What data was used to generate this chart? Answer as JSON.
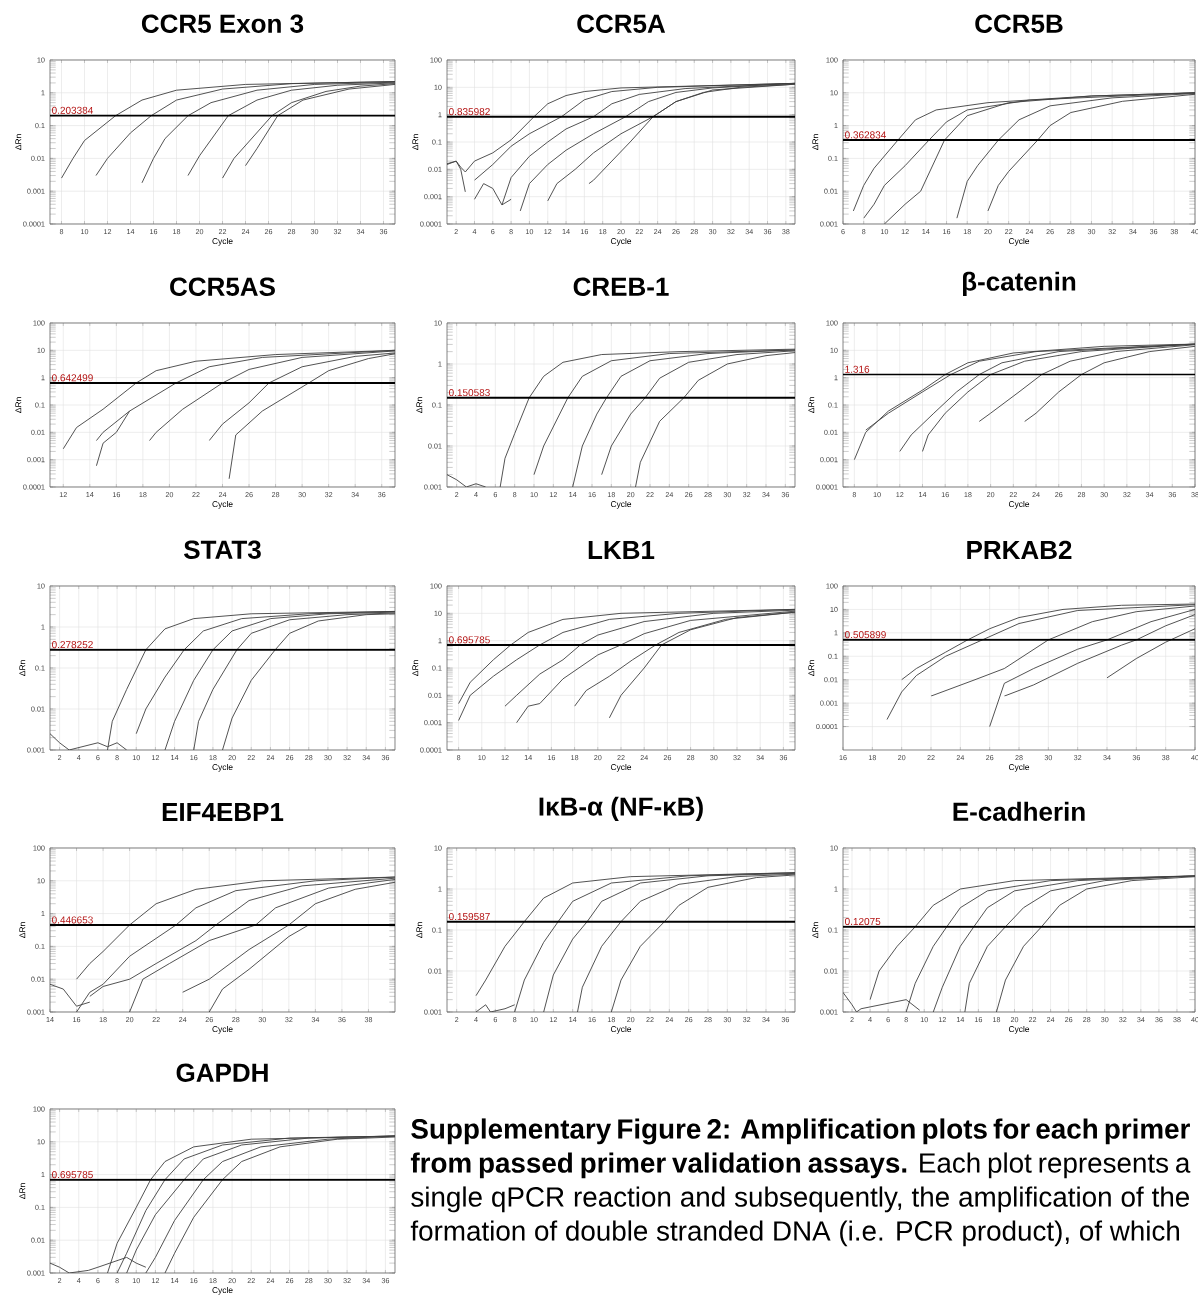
{
  "chart_data": [
    {
      "type": "line",
      "title": "CCR5 Exon 3",
      "xlabel": "Cycle",
      "ylabel": "ΔRn",
      "log": "y",
      "grid": true,
      "xlim": [
        7,
        37
      ],
      "ylim": [
        0.0001,
        10
      ],
      "xticks": [
        8,
        10,
        12,
        14,
        16,
        18,
        20,
        22,
        24,
        26,
        28,
        30,
        32,
        34,
        36
      ],
      "yticks": [
        0.0001,
        0.001,
        0.01,
        0.1,
        1,
        10
      ],
      "ref_lines": [
        {
          "axis": "y",
          "value": 0.203384,
          "label": "0.203384"
        }
      ],
      "series": [
        {
          "color": "#404040",
          "x": [
            8,
            9,
            10,
            12.7,
            15,
            18,
            24,
            37
          ],
          "values": [
            0.0025,
            0.01,
            0.035,
            0.2,
            0.6,
            1.2,
            1.8,
            2.2
          ]
        },
        {
          "color": "#404040",
          "x": [
            11,
            12,
            14,
            15.8,
            18,
            22,
            28,
            37
          ],
          "values": [
            0.003,
            0.01,
            0.06,
            0.2,
            0.6,
            1.3,
            1.9,
            2.2
          ]
        },
        {
          "color": "#404040",
          "x": [
            15,
            16,
            17,
            19,
            21,
            25,
            30,
            37
          ],
          "values": [
            0.0018,
            0.01,
            0.04,
            0.2,
            0.5,
            1.2,
            1.8,
            2.1
          ]
        },
        {
          "color": "#404040",
          "x": [
            19,
            20,
            22.5,
            25,
            28,
            32,
            37
          ],
          "values": [
            0.003,
            0.012,
            0.2,
            0.6,
            1.2,
            1.7,
            2.0
          ]
        },
        {
          "color": "#404040",
          "x": [
            22,
            23,
            26.3,
            28,
            31,
            34,
            37
          ],
          "values": [
            0.0025,
            0.01,
            0.2,
            0.5,
            1.1,
            1.6,
            1.9
          ]
        },
        {
          "color": "#404040",
          "x": [
            24,
            25,
            26.8,
            29,
            33,
            37
          ],
          "values": [
            0.006,
            0.02,
            0.2,
            0.6,
            1.3,
            1.8
          ]
        }
      ]
    },
    {
      "type": "line",
      "title": "CCR5A",
      "xlabel": "Cycle",
      "ylabel": "ΔRn",
      "log": "y",
      "grid": true,
      "xlim": [
        1,
        39
      ],
      "ylim": [
        0.0001,
        100
      ],
      "xticks": [
        2,
        4,
        6,
        8,
        10,
        12,
        14,
        16,
        18,
        20,
        22,
        24,
        26,
        28,
        30,
        32,
        34,
        36,
        38
      ],
      "yticks": [
        0.0001,
        0.001,
        0.01,
        0.1,
        1,
        10,
        100
      ],
      "ref_lines": [
        {
          "axis": "y",
          "value": 0.835982,
          "label": "0.835982"
        }
      ],
      "series": [
        {
          "color": "#404040",
          "x": [
            1,
            2,
            2.5,
            3,
            4,
            6,
            8,
            10.5,
            12,
            14,
            16,
            20,
            39
          ],
          "values": [
            0.015,
            0.02,
            0.012,
            0.008,
            0.02,
            0.04,
            0.12,
            0.84,
            2.5,
            5,
            7,
            9.5,
            14
          ]
        },
        {
          "color": "#404040",
          "x": [
            4,
            6,
            8,
            10,
            13.5,
            16,
            19,
            24,
            39
          ],
          "values": [
            0.004,
            0.015,
            0.07,
            0.2,
            0.84,
            3.5,
            7,
            10,
            14
          ]
        },
        {
          "color": "#404040",
          "x": [
            7,
            8,
            10,
            12,
            14,
            17,
            19,
            22,
            27,
            39
          ],
          "values": [
            0.0005,
            0.005,
            0.03,
            0.1,
            0.3,
            0.84,
            2.5,
            5.5,
            9,
            14
          ]
        },
        {
          "color": "#404040",
          "x": [
            9,
            10,
            12,
            14,
            17,
            20.5,
            23,
            26,
            30,
            39
          ],
          "values": [
            0.0003,
            0.003,
            0.015,
            0.05,
            0.2,
            0.84,
            3,
            6.5,
            9.5,
            14
          ]
        },
        {
          "color": "#404040",
          "x": [
            12,
            13,
            15,
            17,
            20,
            23.5,
            26,
            29,
            33,
            39
          ],
          "values": [
            0.0007,
            0.003,
            0.01,
            0.04,
            0.2,
            0.84,
            3,
            6.5,
            10,
            13
          ]
        },
        {
          "color": "#404040",
          "x": [
            16.5,
            17,
            19,
            21,
            23.5,
            26,
            30,
            39
          ],
          "values": [
            0.003,
            0.004,
            0.02,
            0.1,
            0.84,
            3,
            8,
            13
          ]
        },
        {
          "color": "#404040",
          "x": [
            1,
            2,
            2.5,
            3
          ],
          "values": [
            0.016,
            0.02,
            0.01,
            0.0015
          ]
        },
        {
          "color": "#404040",
          "x": [
            4,
            5,
            6,
            7,
            8
          ],
          "values": [
            0.0008,
            0.003,
            0.002,
            0.0005,
            0.0008
          ]
        }
      ]
    },
    {
      "type": "line",
      "title": "CCR5B",
      "xlabel": "Cycle",
      "ylabel": "ΔRn",
      "log": "y",
      "grid": true,
      "xlim": [
        6,
        40
      ],
      "ylim": [
        0.001,
        100
      ],
      "xticks": [
        6,
        8,
        10,
        12,
        14,
        16,
        18,
        20,
        22,
        24,
        26,
        28,
        30,
        32,
        34,
        36,
        38,
        40
      ],
      "yticks": [
        0.001,
        0.01,
        0.1,
        1,
        10,
        100
      ],
      "ref_lines": [
        {
          "axis": "y",
          "value": 0.362834,
          "label": "0.362834"
        }
      ],
      "series": [
        {
          "color": "#404040",
          "x": [
            7,
            8,
            9,
            11.3,
            13,
            15,
            20,
            30,
            40
          ],
          "values": [
            0.0025,
            0.015,
            0.05,
            0.36,
            1.5,
            3,
            5,
            8,
            10
          ]
        },
        {
          "color": "#404040",
          "x": [
            8,
            9,
            10,
            12,
            14.3,
            16,
            18,
            24,
            40
          ],
          "values": [
            0.0015,
            0.004,
            0.015,
            0.06,
            0.36,
            1.3,
            3,
            6,
            10
          ]
        },
        {
          "color": "#404040",
          "x": [
            10,
            12,
            13.5,
            15.8,
            18,
            22,
            30,
            40
          ],
          "values": [
            0.001,
            0.004,
            0.01,
            0.36,
            2,
            5,
            8,
            10
          ]
        },
        {
          "color": "#404040",
          "x": [
            17,
            18,
            19,
            21,
            23,
            26,
            32,
            40
          ],
          "values": [
            0.0015,
            0.02,
            0.06,
            0.36,
            1.5,
            4,
            7,
            9.5
          ]
        },
        {
          "color": "#404040",
          "x": [
            20,
            21,
            22,
            24.8,
            26,
            28,
            33,
            40
          ],
          "values": [
            0.0025,
            0.015,
            0.04,
            0.36,
            1,
            2.5,
            5.5,
            9
          ]
        }
      ]
    },
    {
      "type": "line",
      "title": "CCR5AS",
      "xlabel": "Cycle",
      "ylabel": "ΔRn",
      "log": "y",
      "grid": true,
      "xlim": [
        11,
        37
      ],
      "ylim": [
        0.0001,
        100
      ],
      "xticks": [
        12,
        14,
        16,
        18,
        20,
        22,
        24,
        26,
        28,
        30,
        32,
        34,
        36
      ],
      "yticks": [
        0.0001,
        0.001,
        0.01,
        0.1,
        1,
        10,
        100
      ],
      "ref_lines": [
        {
          "axis": "y",
          "value": 0.642499,
          "label": "0.642499"
        }
      ],
      "series": [
        {
          "color": "#404040",
          "x": [
            12,
            13,
            15,
            17.5,
            19,
            22,
            28,
            37
          ],
          "values": [
            0.0025,
            0.015,
            0.07,
            0.64,
            1.8,
            4,
            7,
            10
          ]
        },
        {
          "color": "#404040",
          "x": [
            14.5,
            15,
            17,
            20.5,
            23,
            27,
            37
          ],
          "values": [
            0.005,
            0.01,
            0.06,
            0.64,
            2.5,
            5.5,
            10
          ]
        },
        {
          "color": "#404040",
          "x": [
            14.5,
            15,
            16,
            17
          ],
          "values": [
            0.0006,
            0.004,
            0.01,
            0.06
          ]
        },
        {
          "color": "#404040",
          "x": [
            18.5,
            19,
            21,
            24,
            26,
            30,
            37
          ],
          "values": [
            0.005,
            0.01,
            0.07,
            0.64,
            2,
            5.5,
            9.5
          ]
        },
        {
          "color": "#404040",
          "x": [
            23,
            24,
            26,
            27.5,
            30,
            34,
            37
          ],
          "values": [
            0.005,
            0.02,
            0.12,
            0.64,
            2.5,
            6,
            8
          ]
        },
        {
          "color": "#404040",
          "x": [
            24.5,
            25,
            27,
            30.5,
            32,
            35,
            37
          ],
          "values": [
            0.0002,
            0.008,
            0.06,
            0.64,
            1.8,
            5,
            7.5
          ]
        }
      ]
    },
    {
      "type": "line",
      "title": "CREB-1",
      "xlabel": "Cycle",
      "ylabel": "ΔRn",
      "log": "y",
      "grid": true,
      "xlim": [
        1,
        37
      ],
      "ylim": [
        0.001,
        10
      ],
      "xticks": [
        2,
        4,
        6,
        8,
        10,
        12,
        14,
        16,
        18,
        20,
        22,
        24,
        26,
        28,
        30,
        32,
        34,
        36
      ],
      "yticks": [
        0.001,
        0.01,
        0.1,
        1,
        10
      ],
      "ref_lines": [
        {
          "axis": "y",
          "value": 0.150583,
          "label": "0.150583"
        }
      ],
      "series": [
        {
          "color": "#404040",
          "x": [
            6.5,
            7,
            8,
            9.5,
            11,
            13,
            17,
            25,
            37
          ],
          "values": [
            0.001,
            0.005,
            0.02,
            0.15,
            0.5,
            1.1,
            1.7,
            2,
            2.3
          ]
        },
        {
          "color": "#404040",
          "x": [
            10,
            11,
            13.5,
            15,
            18,
            24,
            37
          ],
          "values": [
            0.002,
            0.01,
            0.15,
            0.5,
            1.2,
            1.8,
            2.2
          ]
        },
        {
          "color": "#404040",
          "x": [
            14,
            15,
            16.5,
            17.5,
            19,
            22,
            28,
            37
          ],
          "values": [
            0.001,
            0.01,
            0.06,
            0.15,
            0.5,
            1.2,
            1.8,
            2.2
          ]
        },
        {
          "color": "#404040",
          "x": [
            17,
            18,
            20,
            21.5,
            23,
            26,
            31,
            37
          ],
          "values": [
            0.002,
            0.01,
            0.06,
            0.15,
            0.45,
            1.1,
            1.7,
            2.1
          ]
        },
        {
          "color": "#404040",
          "x": [
            20.5,
            21,
            23,
            25.5,
            27,
            30,
            34,
            37
          ],
          "values": [
            0.001,
            0.004,
            0.04,
            0.15,
            0.4,
            1,
            1.6,
            1.9
          ]
        },
        {
          "color": "#404040",
          "x": [
            1,
            2,
            3,
            4,
            5
          ],
          "values": [
            0.002,
            0.0015,
            0.001,
            0.0012,
            0.001
          ]
        }
      ]
    },
    {
      "type": "line",
      "title": "β-catenin",
      "xlabel": "Cycle",
      "ylabel": "ΔRn",
      "log": "y",
      "grid": true,
      "xlim": [
        7,
        38
      ],
      "ylim": [
        0.0001,
        100
      ],
      "xticks": [
        8,
        10,
        12,
        14,
        16,
        18,
        20,
        22,
        24,
        26,
        28,
        30,
        32,
        34,
        36,
        38
      ],
      "yticks": [
        0.0001,
        0.001,
        0.01,
        0.1,
        1,
        10,
        100
      ],
      "ref_lines": [
        {
          "axis": "y",
          "value": 1.316,
          "label": "1.316"
        }
      ],
      "series": [
        {
          "color": "#404040",
          "x": [
            8,
            9,
            11,
            14,
            16,
            18,
            22,
            30,
            38
          ],
          "values": [
            0.001,
            0.01,
            0.06,
            0.35,
            1.3,
            3.5,
            8,
            14,
            17
          ]
        },
        {
          "color": "#404040",
          "x": [
            9,
            11,
            14,
            16.5,
            19,
            24,
            38
          ],
          "values": [
            0.012,
            0.05,
            0.3,
            1.3,
            4,
            9,
            17
          ]
        },
        {
          "color": "#404040",
          "x": [
            12,
            13,
            15,
            17,
            19,
            21,
            26,
            38
          ],
          "values": [
            0.002,
            0.008,
            0.05,
            0.3,
            1.3,
            3.5,
            9,
            17
          ]
        },
        {
          "color": "#404040",
          "x": [
            14,
            14.5,
            16,
            18,
            20,
            23,
            28,
            38
          ],
          "values": [
            0.002,
            0.008,
            0.05,
            0.3,
            1.3,
            4,
            9,
            17
          ]
        },
        {
          "color": "#404040",
          "x": [
            19,
            20,
            22.5,
            24.5,
            27,
            31,
            38
          ],
          "values": [
            0.025,
            0.05,
            0.3,
            1.3,
            4,
            9,
            16
          ]
        },
        {
          "color": "#404040",
          "x": [
            23,
            24,
            26,
            28,
            30,
            34,
            38
          ],
          "values": [
            0.025,
            0.05,
            0.3,
            1.3,
            3.5,
            9,
            14
          ]
        }
      ]
    },
    {
      "type": "line",
      "title": "STAT3",
      "xlabel": "Cycle",
      "ylabel": "ΔRn",
      "log": "y",
      "grid": true,
      "xlim": [
        1,
        37
      ],
      "ylim": [
        0.001,
        10
      ],
      "xticks": [
        2,
        4,
        6,
        8,
        10,
        12,
        14,
        16,
        18,
        20,
        22,
        24,
        26,
        28,
        30,
        32,
        34,
        36
      ],
      "yticks": [
        0.001,
        0.01,
        0.1,
        1,
        10
      ],
      "ref_lines": [
        {
          "axis": "y",
          "value": 0.278252,
          "label": "0.278252"
        }
      ],
      "series": [
        {
          "color": "#404040",
          "x": [
            7,
            7.5,
            9,
            11,
            13,
            16,
            22,
            37
          ],
          "values": [
            0.001,
            0.005,
            0.03,
            0.278,
            0.9,
            1.6,
            2.1,
            2.4
          ]
        },
        {
          "color": "#404040",
          "x": [
            10,
            11,
            13,
            15,
            17,
            21,
            28,
            37
          ],
          "values": [
            0.0025,
            0.01,
            0.06,
            0.278,
            0.8,
            1.6,
            2.1,
            2.4
          ]
        },
        {
          "color": "#404040",
          "x": [
            13,
            14,
            16,
            18,
            20,
            24,
            30,
            37
          ],
          "values": [
            0.001,
            0.005,
            0.05,
            0.278,
            0.8,
            1.6,
            2.1,
            2.3
          ]
        },
        {
          "color": "#404040",
          "x": [
            16,
            16.5,
            18,
            20.5,
            22,
            26,
            32,
            37
          ],
          "values": [
            0.001,
            0.005,
            0.03,
            0.278,
            0.7,
            1.5,
            2,
            2.2
          ]
        },
        {
          "color": "#404040",
          "x": [
            19,
            20,
            22,
            24.5,
            26,
            29,
            34,
            37
          ],
          "values": [
            0.001,
            0.006,
            0.05,
            0.278,
            0.7,
            1.4,
            2,
            2.1
          ]
        },
        {
          "color": "#404040",
          "x": [
            1,
            2,
            3,
            6,
            7,
            8,
            9
          ],
          "values": [
            0.0025,
            0.0015,
            0.001,
            0.0015,
            0.0012,
            0.0015,
            0.001
          ]
        }
      ]
    },
    {
      "type": "line",
      "title": "LKB1",
      "xlabel": "Cycle",
      "ylabel": "ΔRn",
      "log": "y",
      "grid": true,
      "xlim": [
        7,
        37
      ],
      "ylim": [
        0.0001,
        100
      ],
      "xticks": [
        8,
        10,
        12,
        14,
        16,
        18,
        20,
        22,
        24,
        26,
        28,
        30,
        32,
        34,
        36
      ],
      "yticks": [
        0.0001,
        0.001,
        0.01,
        0.1,
        1,
        10,
        100
      ],
      "ref_lines": [
        {
          "axis": "y",
          "value": 0.695785,
          "label": "0.695785"
        }
      ],
      "series": [
        {
          "color": "#404040",
          "x": [
            8,
            9,
            11,
            12.5,
            14,
            17,
            22,
            37
          ],
          "values": [
            0.005,
            0.03,
            0.2,
            0.7,
            2,
            6,
            10,
            14
          ]
        },
        {
          "color": "#404040",
          "x": [
            8,
            9,
            11,
            13,
            15,
            17,
            21,
            27,
            37
          ],
          "values": [
            0.0012,
            0.01,
            0.05,
            0.2,
            0.7,
            2,
            6,
            10,
            14
          ]
        },
        {
          "color": "#404040",
          "x": [
            12,
            13,
            15,
            17,
            18.5,
            20,
            24,
            30,
            37
          ],
          "values": [
            0.004,
            0.01,
            0.06,
            0.2,
            0.7,
            1.6,
            5,
            10,
            13
          ]
        },
        {
          "color": "#404040",
          "x": [
            13,
            14,
            15,
            17,
            20,
            22,
            24,
            28,
            37
          ],
          "values": [
            0.001,
            0.004,
            0.005,
            0.04,
            0.3,
            0.7,
            1.8,
            5.5,
            12
          ]
        },
        {
          "color": "#404040",
          "x": [
            18,
            19,
            21,
            23,
            25,
            27,
            31,
            37
          ],
          "values": [
            0.004,
            0.015,
            0.05,
            0.2,
            0.7,
            2,
            6,
            11
          ]
        },
        {
          "color": "#404040",
          "x": [
            21,
            22,
            24,
            25.5,
            28,
            32,
            37
          ],
          "values": [
            0.0015,
            0.01,
            0.1,
            0.7,
            2.5,
            7,
            11
          ]
        }
      ]
    },
    {
      "type": "line",
      "title": "PRKAB2",
      "xlabel": "Cycle",
      "ylabel": "ΔRn",
      "log": "y",
      "grid": true,
      "xlim": [
        16,
        40
      ],
      "ylim": [
        1e-05,
        100
      ],
      "xticks": [
        16,
        18,
        20,
        22,
        24,
        26,
        28,
        30,
        32,
        34,
        36,
        38,
        40
      ],
      "yticks": [
        0.0001,
        0.001,
        0.01,
        0.1,
        1,
        10,
        100
      ],
      "ref_lines": [
        {
          "axis": "y",
          "value": 0.505899,
          "label": "0.505899"
        }
      ],
      "series": [
        {
          "color": "#404040",
          "x": [
            20,
            21,
            23,
            24.5,
            26,
            28,
            31,
            35,
            40
          ],
          "values": [
            0.01,
            0.03,
            0.15,
            0.5,
            1.5,
            4.5,
            10,
            15,
            17
          ]
        },
        {
          "color": "#404040",
          "x": [
            19,
            20,
            21,
            23,
            25.5,
            28,
            32,
            40
          ],
          "values": [
            0.0002,
            0.003,
            0.015,
            0.1,
            0.5,
            2.5,
            9,
            16
          ]
        },
        {
          "color": "#404040",
          "x": [
            22,
            25,
            27,
            30,
            33,
            36,
            40
          ],
          "values": [
            0.002,
            0.01,
            0.03,
            0.5,
            3,
            8,
            14
          ]
        },
        {
          "color": "#404040",
          "x": [
            26,
            27,
            29,
            32,
            34,
            37,
            40
          ],
          "values": [
            0.0001,
            0.007,
            0.03,
            0.2,
            0.5,
            3,
            10
          ]
        },
        {
          "color": "#404040",
          "x": [
            27,
            29,
            32,
            35,
            36,
            38,
            40
          ],
          "values": [
            0.002,
            0.006,
            0.05,
            0.3,
            0.5,
            2,
            6
          ]
        },
        {
          "color": "#404040",
          "x": [
            34,
            36,
            38,
            40
          ],
          "values": [
            0.012,
            0.08,
            0.4,
            1.5
          ]
        }
      ]
    },
    {
      "type": "line",
      "title": "EIF4EBP1",
      "xlabel": "Cycle",
      "ylabel": "ΔRn",
      "log": "y",
      "grid": true,
      "xlim": [
        14,
        40
      ],
      "ylim": [
        0.001,
        100
      ],
      "xticks": [
        14,
        16,
        18,
        20,
        22,
        24,
        26,
        28,
        30,
        32,
        34,
        36,
        38
      ],
      "yticks": [
        0.001,
        0.01,
        0.1,
        1,
        10,
        100
      ],
      "ref_lines": [
        {
          "axis": "y",
          "value": 0.446653,
          "label": "0.446653"
        }
      ],
      "series": [
        {
          "color": "#404040",
          "x": [
            16,
            17,
            18,
            20,
            22,
            25,
            30,
            40
          ],
          "values": [
            0.01,
            0.03,
            0.07,
            0.45,
            2,
            5.5,
            10,
            13
          ]
        },
        {
          "color": "#404040",
          "x": [
            16,
            17,
            18,
            20,
            23.5,
            25,
            28,
            34,
            40
          ],
          "values": [
            0.001,
            0.004,
            0.007,
            0.05,
            0.45,
            1.5,
            5,
            10,
            13
          ]
        },
        {
          "color": "#404040",
          "x": [
            17,
            18,
            20,
            22,
            25,
            26.5,
            29,
            33,
            40
          ],
          "values": [
            0.003,
            0.006,
            0.01,
            0.03,
            0.15,
            0.45,
            2.5,
            7,
            12
          ]
        },
        {
          "color": "#404040",
          "x": [
            20,
            21,
            23,
            26,
            29.5,
            31,
            35,
            40
          ],
          "values": [
            0.001,
            0.01,
            0.03,
            0.15,
            0.45,
            1.5,
            6,
            11
          ]
        },
        {
          "color": "#404040",
          "x": [
            24,
            26,
            29,
            32,
            34,
            37,
            40
          ],
          "values": [
            0.004,
            0.01,
            0.08,
            0.45,
            2,
            5.5,
            9
          ]
        },
        {
          "color": "#404040",
          "x": [
            26,
            27,
            29,
            32,
            33.5
          ],
          "values": [
            0.001,
            0.005,
            0.02,
            0.2,
            0.45
          ]
        },
        {
          "color": "#404040",
          "x": [
            14,
            15,
            16,
            17
          ],
          "values": [
            0.007,
            0.005,
            0.0015,
            0.002
          ]
        }
      ]
    },
    {
      "type": "line",
      "title": "IκB-α (NF-κB)",
      "xlabel": "Cycle",
      "ylabel": "ΔRn",
      "log": "y",
      "grid": true,
      "xlim": [
        1,
        37
      ],
      "ylim": [
        0.001,
        10
      ],
      "xticks": [
        2,
        4,
        6,
        8,
        10,
        12,
        14,
        16,
        18,
        20,
        22,
        24,
        26,
        28,
        30,
        32,
        34,
        36
      ],
      "yticks": [
        0.001,
        0.01,
        0.1,
        1,
        10
      ],
      "ref_lines": [
        {
          "axis": "y",
          "value": 0.159587,
          "label": "0.159587"
        }
      ],
      "series": [
        {
          "color": "#404040",
          "x": [
            4,
            5,
            7,
            9,
            11,
            14,
            20,
            37
          ],
          "values": [
            0.0025,
            0.006,
            0.04,
            0.16,
            0.6,
            1.4,
            2,
            2.5
          ]
        },
        {
          "color": "#404040",
          "x": [
            8,
            9,
            11,
            12.5,
            14,
            18,
            26,
            37
          ],
          "values": [
            0.001,
            0.006,
            0.05,
            0.16,
            0.5,
            1.4,
            2.1,
            2.5
          ]
        },
        {
          "color": "#404040",
          "x": [
            11,
            12,
            14,
            15.5,
            17,
            21,
            28,
            37
          ],
          "values": [
            0.001,
            0.008,
            0.06,
            0.16,
            0.5,
            1.4,
            2.1,
            2.4
          ]
        },
        {
          "color": "#404040",
          "x": [
            14.5,
            15,
            17,
            19,
            21,
            25,
            31,
            37
          ],
          "values": [
            0.001,
            0.004,
            0.04,
            0.16,
            0.5,
            1.3,
            2,
            2.3
          ]
        },
        {
          "color": "#404040",
          "x": [
            18,
            19,
            21,
            23.5,
            25,
            28,
            33,
            37
          ],
          "values": [
            0.001,
            0.006,
            0.04,
            0.16,
            0.4,
            1.1,
            1.9,
            2.2
          ]
        },
        {
          "color": "#404040",
          "x": [
            4,
            5,
            5.5,
            7,
            8
          ],
          "values": [
            0.001,
            0.0015,
            0.001,
            0.0012,
            0.0015
          ]
        }
      ]
    },
    {
      "type": "line",
      "title": "E-cadherin",
      "xlabel": "Cycle",
      "ylabel": "ΔRn",
      "log": "y",
      "grid": true,
      "xlim": [
        1,
        40
      ],
      "ylim": [
        0.001,
        10
      ],
      "xticks": [
        2,
        4,
        6,
        8,
        10,
        12,
        14,
        16,
        18,
        20,
        22,
        24,
        26,
        28,
        30,
        32,
        34,
        36,
        38,
        40
      ],
      "yticks": [
        0.001,
        0.01,
        0.1,
        1,
        10
      ],
      "ref_lines": [
        {
          "axis": "y",
          "value": 0.12075,
          "label": "0.12075"
        }
      ],
      "series": [
        {
          "color": "#404040",
          "x": [
            4,
            5,
            7,
            9,
            11,
            14,
            20,
            40
          ],
          "values": [
            0.002,
            0.01,
            0.04,
            0.12,
            0.4,
            1,
            1.6,
            2.1
          ]
        },
        {
          "color": "#404040",
          "x": [
            8,
            9,
            11,
            12.5,
            14,
            17,
            24,
            40
          ],
          "values": [
            0.001,
            0.005,
            0.04,
            0.12,
            0.35,
            0.9,
            1.6,
            2.1
          ]
        },
        {
          "color": "#404040",
          "x": [
            11,
            12,
            14,
            15.5,
            17,
            20,
            27,
            40
          ],
          "values": [
            0.001,
            0.004,
            0.04,
            0.12,
            0.35,
            0.9,
            1.6,
            2.1
          ]
        },
        {
          "color": "#404040",
          "x": [
            14.5,
            15,
            17,
            19,
            21,
            24,
            30,
            40
          ],
          "values": [
            0.001,
            0.005,
            0.04,
            0.12,
            0.35,
            0.9,
            1.6,
            2.1
          ]
        },
        {
          "color": "#404040",
          "x": [
            18,
            19,
            21,
            23,
            25,
            28,
            33,
            40
          ],
          "values": [
            0.001,
            0.006,
            0.04,
            0.12,
            0.4,
            1,
            1.6,
            2.0
          ]
        },
        {
          "color": "#404040",
          "x": [
            1,
            2,
            2.5,
            3,
            8,
            9.5
          ],
          "values": [
            0.003,
            0.0015,
            0.001,
            0.0012,
            0.002,
            0.0011
          ]
        }
      ]
    },
    {
      "type": "line",
      "title": "GAPDH",
      "xlabel": "Cycle",
      "ylabel": "ΔRn",
      "log": "y",
      "grid": true,
      "xlim": [
        1,
        37
      ],
      "ylim": [
        0.001,
        100
      ],
      "xticks": [
        2,
        4,
        6,
        8,
        10,
        12,
        14,
        16,
        18,
        20,
        22,
        24,
        26,
        28,
        30,
        32,
        34,
        36
      ],
      "yticks": [
        0.001,
        0.01,
        0.1,
        1,
        10,
        100
      ],
      "ref_lines": [
        {
          "axis": "y",
          "value": 0.695785,
          "label": "0.695785"
        }
      ],
      "series": [
        {
          "color": "#404040",
          "x": [
            7,
            8,
            10,
            11.5,
            13,
            16,
            22,
            37
          ],
          "values": [
            0.001,
            0.008,
            0.1,
            0.7,
            2.5,
            7,
            12,
            15
          ]
        },
        {
          "color": "#404040",
          "x": [
            8,
            9,
            11,
            13,
            15,
            19,
            26,
            37
          ],
          "values": [
            0.001,
            0.004,
            0.08,
            0.7,
            3,
            8,
            13,
            15
          ]
        },
        {
          "color": "#404040",
          "x": [
            9,
            10,
            12,
            15,
            17,
            21,
            28,
            37
          ],
          "values": [
            0.001,
            0.005,
            0.06,
            0.7,
            3,
            8,
            13,
            15
          ]
        },
        {
          "color": "#404040",
          "x": [
            11,
            12,
            14,
            17,
            19,
            23,
            30,
            37
          ],
          "values": [
            0.001,
            0.003,
            0.04,
            0.7,
            2.5,
            7,
            12,
            15
          ]
        },
        {
          "color": "#404040",
          "x": [
            13,
            14,
            16,
            19,
            21,
            25,
            31,
            37
          ],
          "values": [
            0.001,
            0.004,
            0.05,
            0.7,
            2.5,
            7,
            12,
            14
          ]
        },
        {
          "color": "#404040",
          "x": [
            1,
            2,
            3,
            5,
            6,
            9,
            10,
            11
          ],
          "values": [
            0.002,
            0.0015,
            0.001,
            0.0012,
            0.0015,
            0.003,
            0.002,
            0.0015
          ]
        }
      ]
    },
    {
      "type": "other",
      "annotations": [
        "**Supplementary Figure 2: Amplification plots for each primer from passed primer validation assays.** Each plot represents a single qPCR reaction and subsequently, the amplification of the formation of double stranded DNA (i.e. PCR product), of which"
      ]
    }
  ]
}
